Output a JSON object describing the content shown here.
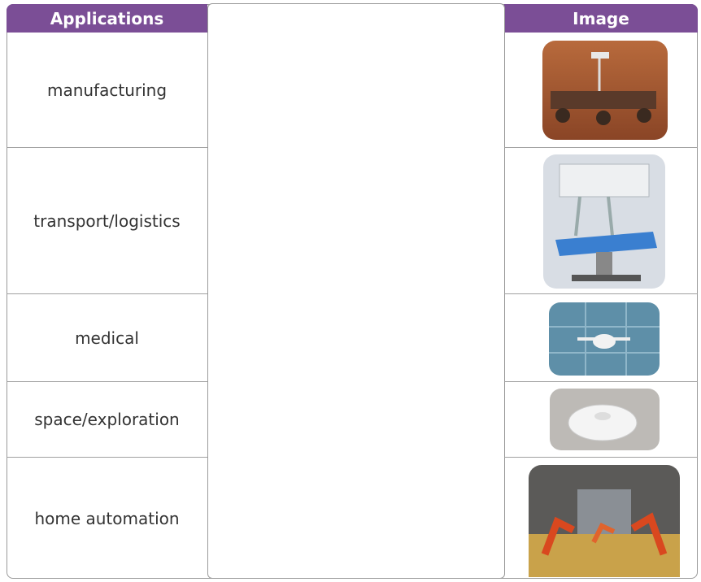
{
  "table": {
    "header": {
      "applications": "Applications",
      "image": "Image"
    },
    "rows": [
      "manufacturing",
      "transport/logistics",
      "medical",
      "space/exploration",
      "home automation"
    ]
  }
}
